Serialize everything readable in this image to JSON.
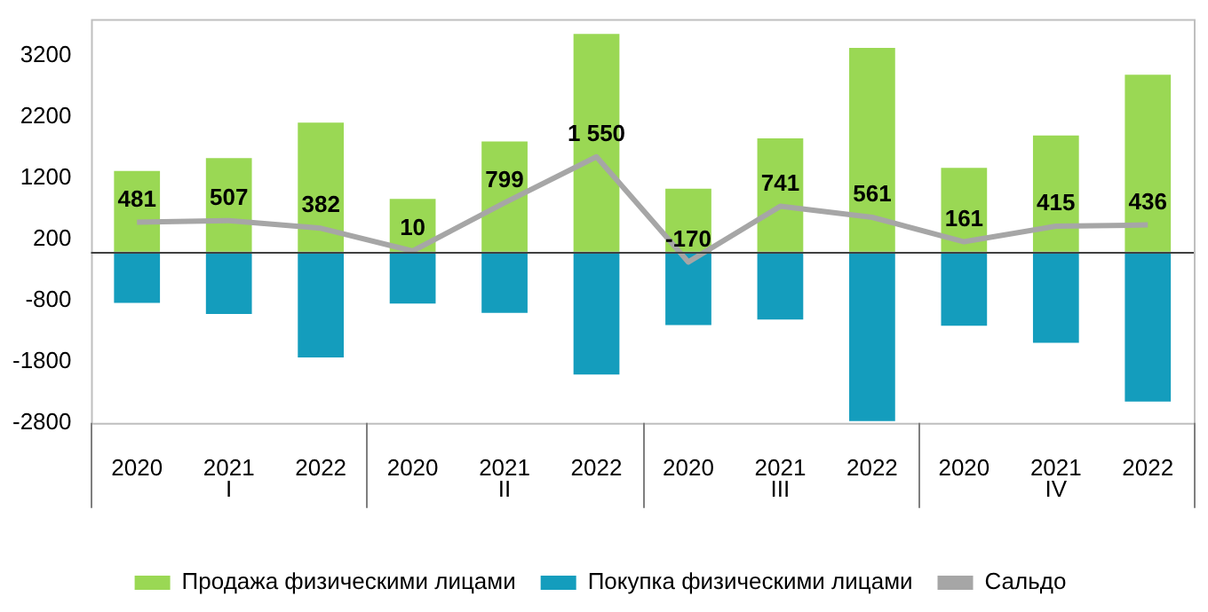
{
  "chart_data": {
    "type": "bar",
    "stacked": true,
    "categories": [
      "2020",
      "2021",
      "2022",
      "2020",
      "2021",
      "2022",
      "2020",
      "2021",
      "2022",
      "2020",
      "2021",
      "2022"
    ],
    "series": [
      {
        "name": "Продажа физическими лицами",
        "color": "#9ad854",
        "values": [
          1320,
          1530,
          2110,
          860,
          1800,
          3560,
          1030,
          1850,
          3330,
          1370,
          1900,
          2890
        ]
      },
      {
        "name": "Покупка физическими лицами",
        "color": "#149dbd",
        "values": [
          -840,
          -1020,
          -1730,
          -850,
          -1000,
          -2010,
          -1200,
          -1110,
          -2770,
          -1210,
          -1490,
          -2450
        ]
      },
      {
        "name": "Сальдо",
        "type": "line",
        "color": "#a6a6a6",
        "values": [
          481,
          507,
          382,
          10,
          799,
          1550,
          -170,
          741,
          561,
          161,
          415,
          436
        ],
        "value_labels": [
          "481",
          "507",
          "382",
          "10",
          "799",
          "1 550",
          "-170",
          "741",
          "561",
          "161",
          "415",
          "436"
        ]
      }
    ],
    "ylim": [
      -2800,
      3800
    ],
    "yticks": [
      -2800,
      -1800,
      -800,
      200,
      1200,
      2200,
      3200
    ],
    "grid": false,
    "legend": "bottom",
    "marker": "none",
    "annotations": [
      "I",
      "II",
      "III",
      "IV"
    ]
  }
}
